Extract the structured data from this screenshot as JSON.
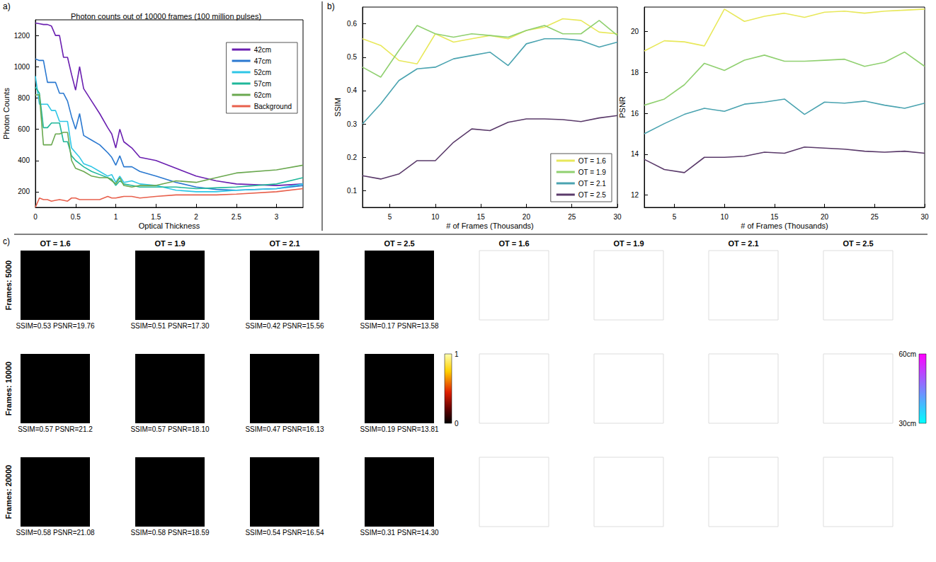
{
  "panel_labels": [
    "a)",
    "b)",
    "c)"
  ],
  "chart_data": [
    {
      "type": "line",
      "title": "Photon counts out of 10000 frames (100 million pulses)",
      "x_label": "Optical Thickness",
      "y_label": "Photon Counts",
      "x": [
        0,
        0.05,
        0.1,
        0.15,
        0.2,
        0.25,
        0.3,
        0.35,
        0.4,
        0.45,
        0.5,
        0.55,
        0.6,
        0.7,
        0.8,
        0.9,
        0.95,
        1,
        1.05,
        1.1,
        1.2,
        1.3,
        1.5,
        1.75,
        2,
        2.25,
        2.5,
        3,
        3.33
      ],
      "series": [
        {
          "name": "42cm",
          "color": "#6a1fb0",
          "values": [
            1280,
            1275,
            1270,
            1270,
            1260,
            1200,
            1200,
            1060,
            1060,
            950,
            850,
            1000,
            860,
            780,
            700,
            610,
            570,
            480,
            600,
            520,
            480,
            420,
            400,
            350,
            300,
            270,
            250,
            240,
            250
          ]
        },
        {
          "name": "47cm",
          "color": "#2a78d0",
          "values": [
            1050,
            1040,
            1040,
            900,
            900,
            900,
            830,
            830,
            780,
            680,
            600,
            700,
            560,
            530,
            500,
            450,
            420,
            370,
            430,
            360,
            360,
            330,
            300,
            260,
            230,
            215,
            210,
            220,
            240
          ]
        },
        {
          "name": "52cm",
          "color": "#2ec6e6",
          "values": [
            940,
            760,
            760,
            760,
            720,
            720,
            650,
            650,
            650,
            480,
            450,
            420,
            380,
            360,
            330,
            300,
            310,
            260,
            300,
            260,
            270,
            250,
            240,
            210,
            200,
            200,
            210,
            220,
            250
          ]
        },
        {
          "name": "57cm",
          "color": "#20b79a",
          "values": [
            870,
            830,
            610,
            610,
            640,
            640,
            640,
            520,
            520,
            430,
            400,
            380,
            360,
            330,
            310,
            290,
            280,
            240,
            270,
            250,
            240,
            230,
            230,
            230,
            220,
            225,
            230,
            250,
            290
          ]
        },
        {
          "name": "62cm",
          "color": "#6aa84f",
          "values": [
            820,
            820,
            500,
            500,
            500,
            570,
            570,
            580,
            580,
            400,
            350,
            340,
            330,
            300,
            290,
            290,
            270,
            250,
            290,
            240,
            230,
            240,
            240,
            270,
            260,
            290,
            320,
            340,
            370
          ]
        },
        {
          "name": "Background",
          "color": "#e8604c",
          "values": [
            100,
            160,
            150,
            150,
            140,
            145,
            150,
            145,
            140,
            160,
            160,
            150,
            150,
            150,
            150,
            170,
            160,
            160,
            165,
            170,
            170,
            160,
            170,
            180,
            180,
            180,
            185,
            200,
            220
          ]
        }
      ],
      "xlim": [
        0,
        3.33
      ],
      "xticks": [
        0,
        0.5,
        1,
        1.5,
        2,
        2.5,
        3
      ],
      "ylim": [
        100,
        1300
      ],
      "yticks": [
        200,
        400,
        600,
        800,
        1000,
        1200
      ],
      "grid": false,
      "legend": "upper right"
    },
    {
      "type": "line",
      "x_label": "# of Frames (Thousands)",
      "y_label": "SSIM",
      "x": [
        2,
        4,
        6,
        8,
        10,
        12,
        14,
        16,
        18,
        20,
        22,
        24,
        26,
        28,
        30
      ],
      "series": [
        {
          "name": "OT = 1.6",
          "color": "#e8e85a",
          "values": [
            0.555,
            0.535,
            0.49,
            0.48,
            0.57,
            0.545,
            0.555,
            0.565,
            0.555,
            0.58,
            0.59,
            0.615,
            0.61,
            0.575,
            0.57
          ]
        },
        {
          "name": "OT = 1.9",
          "color": "#90d070",
          "values": [
            0.47,
            0.44,
            0.52,
            0.595,
            0.57,
            0.56,
            0.57,
            0.565,
            0.56,
            0.58,
            0.595,
            0.57,
            0.57,
            0.61,
            0.565
          ]
        },
        {
          "name": "OT = 2.1",
          "color": "#4aa3b0",
          "values": [
            0.3,
            0.36,
            0.43,
            0.465,
            0.47,
            0.495,
            0.505,
            0.515,
            0.475,
            0.54,
            0.555,
            0.555,
            0.55,
            0.53,
            0.545
          ]
        },
        {
          "name": "OT = 2.5",
          "color": "#5a3a6a",
          "values": [
            0.145,
            0.135,
            0.15,
            0.19,
            0.19,
            0.245,
            0.285,
            0.28,
            0.305,
            0.315,
            0.315,
            0.313,
            0.307,
            0.318,
            0.325
          ]
        }
      ],
      "xlim": [
        2,
        30
      ],
      "xticks": [
        5,
        10,
        15,
        20,
        25,
        30
      ],
      "ylim": [
        0.05,
        0.65
      ],
      "yticks": [
        0.1,
        0.2,
        0.3,
        0.4,
        0.5,
        0.6
      ],
      "grid": false,
      "legend": "lower right"
    },
    {
      "type": "line",
      "x_label": "# of Frames (Thousands)",
      "y_label": "PSNR",
      "x": [
        2,
        4,
        6,
        8,
        10,
        12,
        14,
        16,
        18,
        20,
        22,
        24,
        26,
        28,
        30
      ],
      "series": [
        {
          "name": "OT = 1.6",
          "color": "#e8e85a",
          "values": [
            19.05,
            19.55,
            19.5,
            19.3,
            21.1,
            20.5,
            20.75,
            20.9,
            20.7,
            20.95,
            21.0,
            20.9,
            21.0,
            21.05,
            21.1
          ]
        },
        {
          "name": "OT = 1.9",
          "color": "#90d070",
          "values": [
            16.4,
            16.7,
            17.4,
            18.45,
            18.1,
            18.6,
            18.85,
            18.55,
            18.55,
            18.6,
            18.65,
            18.3,
            18.5,
            19.0,
            18.3
          ]
        },
        {
          "name": "OT = 2.1",
          "color": "#4aa3b0",
          "values": [
            15.0,
            15.5,
            15.95,
            16.25,
            16.1,
            16.45,
            16.55,
            16.7,
            15.95,
            16.55,
            16.5,
            16.6,
            16.4,
            16.25,
            16.5
          ]
        },
        {
          "name": "OT = 2.5",
          "color": "#5a3a6a",
          "values": [
            13.75,
            13.25,
            13.1,
            13.85,
            13.85,
            13.9,
            14.1,
            14.05,
            14.35,
            14.3,
            14.25,
            14.15,
            14.1,
            14.15,
            14.05
          ]
        }
      ],
      "xlim": [
        2,
        30
      ],
      "xticks": [
        5,
        10,
        15,
        20,
        25,
        30
      ],
      "ylim": [
        11.4,
        21.2
      ],
      "yticks": [
        12,
        14,
        16,
        18,
        20
      ],
      "grid": false
    },
    {
      "type": "image_grid",
      "intensity_columns": [
        "OT = 1.6",
        "OT = 1.9",
        "OT = 2.1",
        "OT = 2.5"
      ],
      "depth_columns": [
        "OT = 1.6",
        "OT = 1.9",
        "OT = 2.1",
        "OT = 2.5"
      ],
      "row_labels": [
        "Frames: 5000",
        "Frames: 10000",
        "Frames: 20000"
      ],
      "captions": [
        [
          "SSIM=0.53 PSNR=19.76",
          "SSIM=0.51 PSNR=17.30",
          "SSIM=0.42 PSNR=15.56",
          "SSIM=0.17 PSNR=13.58"
        ],
        [
          "SSIM=0.57 PSNR=21.2",
          "SSIM=0.57 PSNR=18.10",
          "SSIM=0.47 PSNR=16.13",
          "SSIM=0.19 PSNR=13.81"
        ],
        [
          "SSIM=0.58 PSNR=21.08",
          "SSIM=0.58 PSNR=18.59",
          "SSIM=0.54 PSNR=16.54",
          "SSIM=0.31 PSNR=14.30"
        ]
      ],
      "intensity_colorbar": {
        "range": [
          0,
          1
        ],
        "ticks": [
          0,
          1
        ]
      },
      "depth_colorbar": {
        "range": [
          30,
          60
        ],
        "ticks": [
          {
            "value": 30,
            "label": "30cm"
          },
          {
            "value": 60,
            "label": "60cm"
          }
        ]
      }
    }
  ]
}
